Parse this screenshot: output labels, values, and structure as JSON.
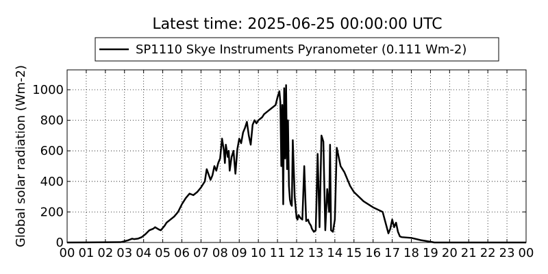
{
  "chart_data": {
    "type": "line",
    "title": "Latest time: 2025-06-25 00:00:00 UTC",
    "xlabel": "",
    "ylabel": "Global solar radiation (Wm-2)",
    "xlim": [
      0,
      24
    ],
    "ylim": [
      0,
      1130
    ],
    "x_ticks": [
      0,
      1,
      2,
      3,
      4,
      5,
      6,
      7,
      8,
      9,
      10,
      11,
      12,
      13,
      14,
      15,
      16,
      17,
      18,
      19,
      20,
      21,
      22,
      23,
      24
    ],
    "x_tick_labels": [
      "00",
      "01",
      "02",
      "03",
      "04",
      "05",
      "06",
      "07",
      "08",
      "09",
      "10",
      "11",
      "12",
      "13",
      "14",
      "15",
      "16",
      "17",
      "18",
      "19",
      "20",
      "21",
      "22",
      "23",
      "00"
    ],
    "y_ticks": [
      0,
      200,
      400,
      600,
      800,
      1000
    ],
    "y_tick_labels": [
      "0",
      "200",
      "400",
      "600",
      "800",
      "1000"
    ],
    "grid": true,
    "legend_position": "top-center",
    "series": [
      {
        "name": "SP1110 Skye Instruments Pyranometer (0.111 Wm-2)",
        "color": "#000000",
        "x": [
          0,
          2.8,
          3.0,
          3.2,
          3.4,
          3.5,
          3.7,
          3.9,
          4.1,
          4.3,
          4.5,
          4.6,
          4.8,
          4.9,
          5.0,
          5.1,
          5.2,
          5.4,
          5.6,
          5.8,
          6.0,
          6.2,
          6.4,
          6.6,
          6.8,
          7.0,
          7.1,
          7.2,
          7.3,
          7.5,
          7.6,
          7.7,
          7.8,
          7.9,
          8.0,
          8.1,
          8.2,
          8.25,
          8.3,
          8.4,
          8.45,
          8.5,
          8.6,
          8.7,
          8.8,
          8.9,
          9.0,
          9.1,
          9.2,
          9.3,
          9.4,
          9.5,
          9.6,
          9.7,
          9.8,
          9.9,
          10.0,
          10.1,
          10.2,
          10.3,
          10.5,
          10.7,
          10.9,
          11.0,
          11.1,
          11.15,
          11.2,
          11.25,
          11.3,
          11.35,
          11.4,
          11.45,
          11.5,
          11.55,
          11.6,
          11.65,
          11.7,
          11.75,
          11.8,
          11.9,
          12.0,
          12.05,
          12.1,
          12.15,
          12.2,
          12.3,
          12.4,
          12.5,
          12.6,
          12.65,
          12.7,
          12.75,
          12.8,
          12.9,
          13.0,
          13.1,
          13.2,
          13.3,
          13.4,
          13.5,
          13.6,
          13.7,
          13.75,
          13.8,
          13.9,
          14.0,
          14.1,
          14.2,
          14.3,
          14.4,
          14.5,
          14.6,
          14.7,
          14.8,
          15.0,
          15.5,
          16.0,
          16.5,
          16.8,
          16.9,
          17.0,
          17.1,
          17.2,
          17.3,
          17.4,
          17.5,
          18.0,
          18.5,
          19.0,
          19.2,
          24.0
        ],
        "y": [
          0,
          2,
          8,
          15,
          25,
          22,
          25,
          35,
          55,
          80,
          90,
          100,
          85,
          80,
          95,
          110,
          130,
          150,
          170,
          200,
          250,
          290,
          320,
          310,
          330,
          360,
          380,
          400,
          480,
          410,
          440,
          500,
          470,
          520,
          550,
          680,
          600,
          520,
          640,
          560,
          600,
          470,
          560,
          600,
          450,
          610,
          680,
          650,
          720,
          750,
          790,
          700,
          640,
          770,
          800,
          780,
          800,
          810,
          820,
          840,
          860,
          880,
          900,
          950,
          990,
          920,
          500,
          900,
          250,
          1010,
          550,
          1030,
          480,
          800,
          370,
          280,
          250,
          240,
          670,
          300,
          160,
          150,
          180,
          170,
          160,
          150,
          500,
          140,
          150,
          130,
          120,
          110,
          90,
          70,
          80,
          580,
          100,
          700,
          660,
          80,
          350,
          200,
          640,
          80,
          70,
          150,
          620,
          560,
          500,
          480,
          460,
          430,
          400,
          370,
          330,
          270,
          230,
          200,
          60,
          90,
          150,
          100,
          130,
          70,
          40,
          35,
          30,
          15,
          5,
          0,
          0
        ]
      }
    ]
  }
}
